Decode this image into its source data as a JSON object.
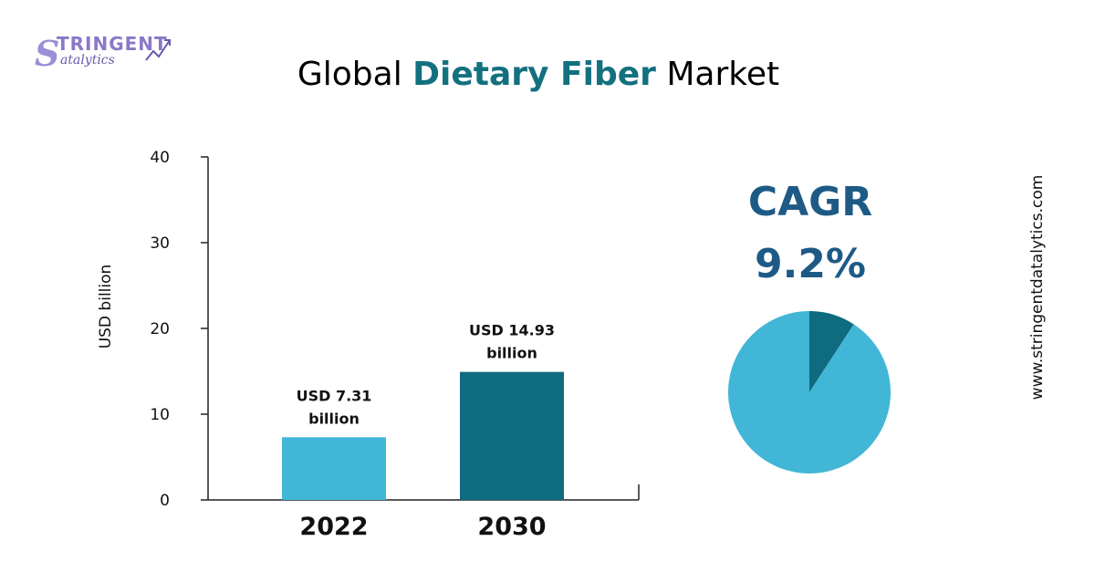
{
  "logo": {
    "initial": "S",
    "main": "TRINGENT",
    "sub": "atalytics"
  },
  "title": {
    "prefix": "Global ",
    "highlight": "Dietary Fiber",
    "suffix": " Market"
  },
  "cagr": {
    "label": "CAGR",
    "value": "9.2%",
    "percent": 9.2
  },
  "website": "www.stringentdatalytics.com",
  "colors": {
    "bar_2022": "#41b6d6",
    "bar_2030": "#0f6b80",
    "cagr_text": "#1e5a86",
    "title_highlight": "#13707f",
    "pie_main": "#41b6d6",
    "pie_slice": "#0f6b80"
  },
  "chart_data": [
    {
      "type": "bar",
      "categories": [
        "2022",
        "2030"
      ],
      "values": [
        7.31,
        14.93
      ],
      "data_labels": [
        [
          "USD 7.31",
          "billion"
        ],
        [
          "USD 14.93",
          "billion"
        ]
      ],
      "ylabel": "USD billion",
      "ylim": [
        0,
        40
      ],
      "yticks": [
        0,
        10,
        20,
        30,
        40
      ],
      "grid": false,
      "legend": "none"
    },
    {
      "type": "pie",
      "values": [
        9.2,
        90.8
      ],
      "legend": "none"
    }
  ]
}
